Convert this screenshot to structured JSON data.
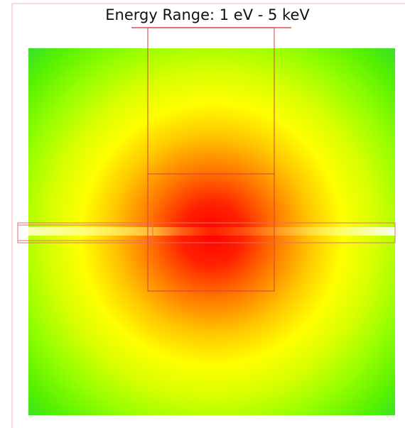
{
  "title": "Energy Range: 1 eV - 5 keV"
}
